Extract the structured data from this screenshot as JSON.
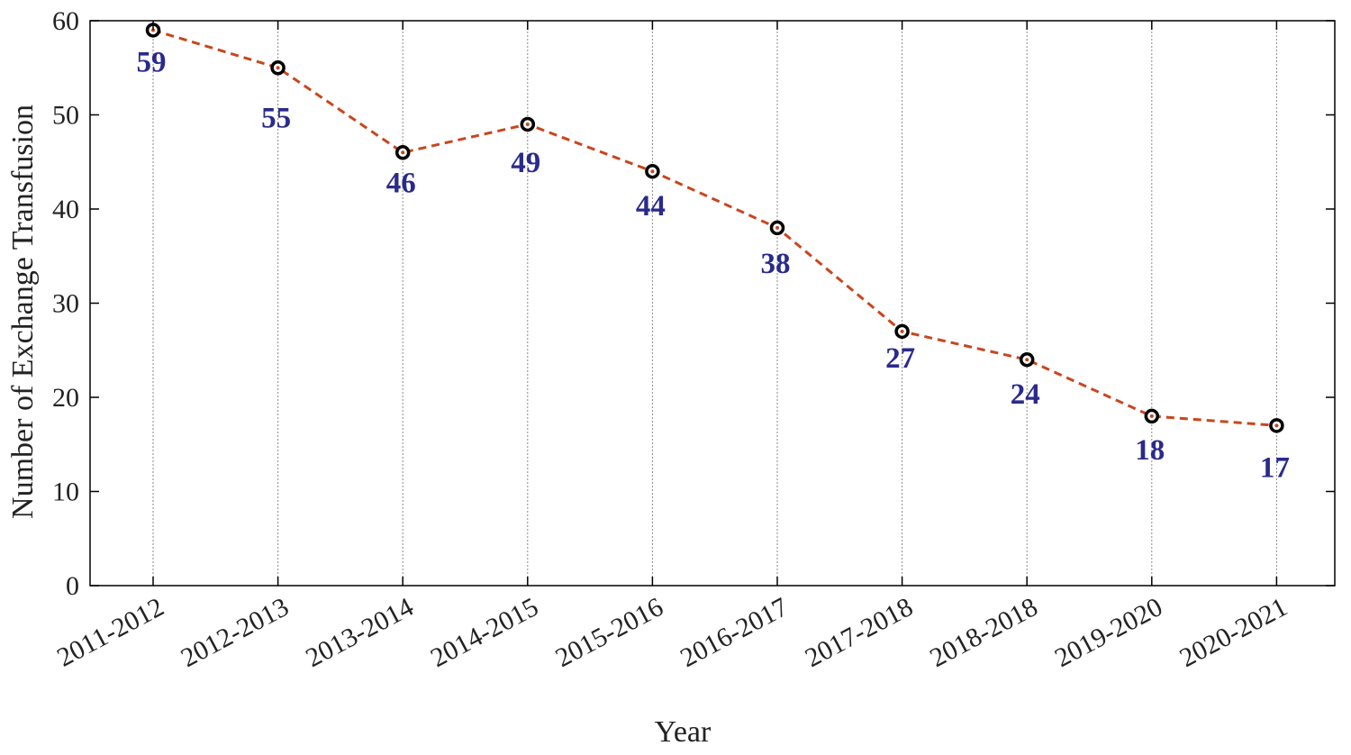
{
  "chart_data": {
    "type": "line",
    "title": "",
    "xlabel": "Year",
    "ylabel": "Number of Exchange Transfusion",
    "categories": [
      "2011-2012",
      "2012-2013",
      "2013-2014",
      "2014-2015",
      "2015-2016",
      "2016-2017",
      "2017-2018",
      "2018-2018",
      "2019-2020",
      "2020-2021"
    ],
    "series": [
      {
        "values": [
          59,
          55,
          46,
          49,
          44,
          38,
          27,
          24,
          18,
          17
        ]
      }
    ],
    "data_labels": [
      "59",
      "55",
      "46",
      "49",
      "44",
      "38",
      "27",
      "24",
      "18",
      "17"
    ],
    "ylim": [
      0,
      60
    ],
    "yticks": [
      0,
      10,
      20,
      30,
      40,
      50,
      60
    ],
    "grid": "vertical dotted lines at each category",
    "legend": "none",
    "colors": {
      "line": "#c8461e",
      "marker": "#000000",
      "data_label": "#2a2a8c",
      "axis": "#000000",
      "grid": "#8a8a8a"
    }
  }
}
